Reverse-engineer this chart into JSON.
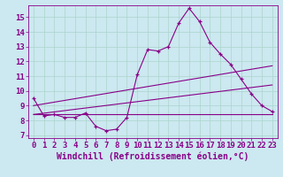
{
  "title": "",
  "xlabel": "Windchill (Refroidissement éolien,°C)",
  "ylabel": "",
  "background_color": "#cce8f0",
  "grid_color": "#aad4cc",
  "line_color": "#880088",
  "xlim": [
    -0.5,
    23.5
  ],
  "ylim": [
    6.8,
    15.8
  ],
  "yticks": [
    7,
    8,
    9,
    10,
    11,
    12,
    13,
    14,
    15
  ],
  "xticks": [
    0,
    1,
    2,
    3,
    4,
    5,
    6,
    7,
    8,
    9,
    10,
    11,
    12,
    13,
    14,
    15,
    16,
    17,
    18,
    19,
    20,
    21,
    22,
    23
  ],
  "line1_x": [
    0,
    1,
    2,
    3,
    4,
    5,
    6,
    7,
    8,
    9,
    10,
    11,
    12,
    13,
    14,
    15,
    16,
    17,
    18,
    19,
    20,
    21,
    22,
    23
  ],
  "line1_y": [
    9.5,
    8.3,
    8.4,
    8.2,
    8.2,
    8.5,
    7.6,
    7.3,
    7.4,
    8.2,
    11.1,
    12.8,
    12.7,
    13.0,
    14.6,
    15.6,
    14.7,
    13.3,
    12.5,
    11.8,
    10.8,
    9.8,
    9.0,
    8.6
  ],
  "line2_x": [
    0,
    23
  ],
  "line2_y": [
    8.4,
    8.4
  ],
  "line3_x": [
    0,
    23
  ],
  "line3_y": [
    9.0,
    11.7
  ],
  "line4_x": [
    0,
    23
  ],
  "line4_y": [
    8.4,
    10.4
  ],
  "font_color": "#880088",
  "tick_fontsize": 6.5,
  "label_fontsize": 7.0
}
